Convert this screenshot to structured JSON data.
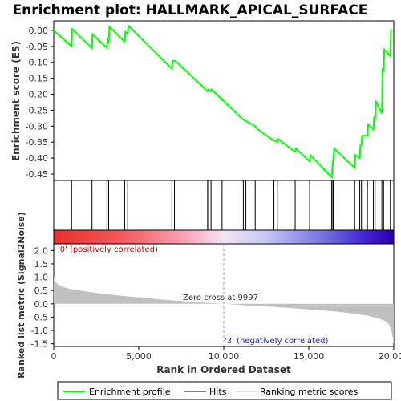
{
  "chart_data": {
    "type": "line",
    "title": "Enrichment plot: HALLMARK_APICAL_SURFACE",
    "enrichment": {
      "ylabel": "Enrichment score (ES)",
      "ylim": [
        -0.47,
        0.03
      ],
      "yticks": [
        "0.00",
        "-0.05",
        "-0.10",
        "-0.15",
        "-0.20",
        "-0.25",
        "-0.30",
        "-0.35",
        "-0.40",
        "-0.45"
      ],
      "ytick_values": [
        0.0,
        -0.05,
        -0.1,
        -0.15,
        -0.2,
        -0.25,
        -0.3,
        -0.35,
        -0.4,
        -0.45
      ],
      "series": [
        {
          "name": "Enrichment profile",
          "color": "#00ff00",
          "x": [
            0,
            1050,
            1080,
            2250,
            2280,
            3130,
            3170,
            3230,
            3280,
            4170,
            4210,
            4350,
            4390,
            6950,
            6990,
            7100,
            7140,
            9050,
            9100,
            9250,
            9290,
            11150,
            11190,
            11850,
            11890,
            12950,
            12990,
            13150,
            13190,
            14200,
            14240,
            15050,
            15090,
            16350,
            16390,
            16450,
            16490,
            17700,
            17740,
            18000,
            18040,
            18100,
            18140,
            18450,
            18490,
            18800,
            18840,
            18900,
            18940,
            19300,
            19340,
            19400,
            19440,
            19800,
            19840
          ],
          "y": [
            0.0,
            -0.05,
            0.005,
            -0.055,
            -0.012,
            -0.055,
            -0.025,
            -0.04,
            0.012,
            -0.035,
            -0.005,
            -0.01,
            0.015,
            -0.12,
            -0.095,
            -0.095,
            -0.095,
            -0.19,
            -0.185,
            -0.19,
            -0.185,
            -0.28,
            -0.28,
            -0.3,
            -0.305,
            -0.345,
            -0.345,
            -0.35,
            -0.34,
            -0.38,
            -0.37,
            -0.41,
            -0.39,
            -0.46,
            -0.43,
            -0.4,
            -0.37,
            -0.43,
            -0.39,
            -0.4,
            -0.36,
            -0.36,
            -0.33,
            -0.33,
            -0.295,
            -0.31,
            -0.27,
            -0.28,
            -0.22,
            -0.26,
            -0.12,
            -0.13,
            -0.06,
            -0.08,
            0.005
          ]
        }
      ]
    },
    "hits": {
      "label": "Hits",
      "positions": [
        1050,
        2250,
        3130,
        3230,
        4170,
        4350,
        6950,
        7100,
        9050,
        9120,
        9250,
        9900,
        11150,
        11300,
        11850,
        12950,
        13150,
        14200,
        15050,
        16350,
        16420,
        16450,
        17700,
        18000,
        18100,
        18450,
        18800,
        18900,
        19300,
        19400,
        19800
      ]
    },
    "metric": {
      "ylabel": "Ranked list metric (Signal2Noise)",
      "ylim": [
        -1.6,
        2.25
      ],
      "yticks": [
        "2.0",
        "1.5",
        "1.0",
        "0.5",
        "0.0",
        "-0.5",
        "-1.0",
        "-1.5"
      ],
      "ytick_values": [
        2.0,
        1.5,
        1.0,
        0.5,
        0.0,
        -0.5,
        -1.0,
        -1.5
      ],
      "legend_name": "Ranking metric scores",
      "color": "#c0c0c0",
      "x": [
        0,
        80,
        200,
        500,
        1000,
        2000,
        3000,
        4000,
        5000,
        6000,
        7000,
        8000,
        9000,
        9997,
        11000,
        12000,
        13000,
        14000,
        15000,
        16000,
        17000,
        18000,
        18500,
        19000,
        19400,
        19700,
        19850,
        19950,
        20000
      ],
      "y": [
        1.0,
        0.85,
        0.75,
        0.65,
        0.55,
        0.45,
        0.37,
        0.3,
        0.24,
        0.18,
        0.13,
        0.08,
        0.04,
        0.0,
        -0.04,
        -0.08,
        -0.12,
        -0.16,
        -0.21,
        -0.26,
        -0.32,
        -0.4,
        -0.45,
        -0.53,
        -0.62,
        -0.75,
        -0.95,
        -1.3,
        -1.5
      ],
      "annotation_pos": "'0' (positively correlated)",
      "annotation_neg": "'3' (negatively correlated)",
      "annotation_zero": "Zero cross at 9997",
      "zero_cross": 9997
    },
    "x_axis": {
      "xlabel": "Rank in Ordered Dataset",
      "xlim": [
        0,
        20000
      ],
      "xticks": [
        "0",
        "5,000",
        "10,000",
        "15,000",
        "20,000"
      ],
      "xtick_values": [
        0,
        5000,
        10000,
        15000,
        20000
      ]
    },
    "legend": {
      "items": [
        "Enrichment profile",
        "Hits",
        "Ranking metric scores"
      ],
      "colors": [
        "#00ff00",
        "#000000",
        "#c0c0c0"
      ],
      "placement": "bottom"
    }
  }
}
